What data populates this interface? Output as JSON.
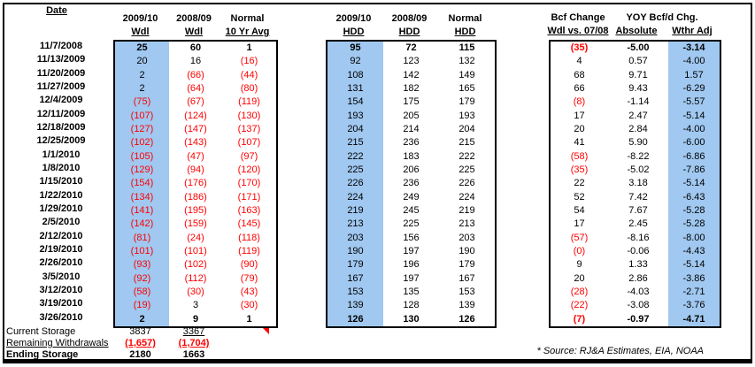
{
  "headers": {
    "date": "Date",
    "left": [
      [
        "2009/10",
        "Wdl"
      ],
      [
        "2008/09",
        "Wdl"
      ],
      [
        "Normal",
        "10 Yr Avg"
      ]
    ],
    "middle": [
      [
        "2009/10",
        "HDD"
      ],
      [
        "2008/09",
        "HDD"
      ],
      [
        "Normal",
        "HDD"
      ]
    ],
    "right_group1_line1": "Bcf Change",
    "right_group1_line2": "Wdl vs. 07/08",
    "right_group2_line1": "YOY Bcf/d Chg.",
    "right_group2_col1": "Absolute",
    "right_group2_col2": "Wthr Adj"
  },
  "row_key_order": [
    "date",
    "wdl_2009_10",
    "wdl_2008_09",
    "wdl_normal_10yr",
    "hdd_2009_10",
    "hdd_2008_09",
    "hdd_normal",
    "bcf_change_wdl_vs_0708",
    "yoy_bcfd_absolute",
    "yoy_bcfd_wthr_adj"
  ],
  "rows": [
    [
      "11/7/2008",
      "25",
      "60",
      "1",
      "95",
      "72",
      "115",
      "(35)",
      "-5.00",
      "-3.14"
    ],
    [
      "11/13/2009",
      "20",
      "16",
      "(16)",
      "92",
      "123",
      "132",
      "4",
      "0.57",
      "-4.00"
    ],
    [
      "11/20/2009",
      "2",
      "(66)",
      "(44)",
      "108",
      "142",
      "149",
      "68",
      "9.71",
      "1.57"
    ],
    [
      "11/27/2009",
      "2",
      "(64)",
      "(80)",
      "131",
      "182",
      "165",
      "66",
      "9.43",
      "-6.29"
    ],
    [
      "12/4/2009",
      "(75)",
      "(67)",
      "(119)",
      "154",
      "175",
      "179",
      "(8)",
      "-1.14",
      "-5.57"
    ],
    [
      "12/11/2009",
      "(107)",
      "(124)",
      "(130)",
      "193",
      "205",
      "193",
      "17",
      "2.47",
      "-5.14"
    ],
    [
      "12/18/2009",
      "(127)",
      "(147)",
      "(137)",
      "204",
      "214",
      "204",
      "20",
      "2.84",
      "-4.00"
    ],
    [
      "12/25/2009",
      "(102)",
      "(143)",
      "(107)",
      "215",
      "236",
      "215",
      "41",
      "5.90",
      "-6.00"
    ],
    [
      "1/1/2010",
      "(105)",
      "(47)",
      "(97)",
      "222",
      "183",
      "222",
      "(58)",
      "-8.22",
      "-6.86"
    ],
    [
      "1/8/2010",
      "(129)",
      "(94)",
      "(120)",
      "225",
      "206",
      "225",
      "(35)",
      "-5.02",
      "-7.86"
    ],
    [
      "1/15/2010",
      "(154)",
      "(176)",
      "(170)",
      "226",
      "236",
      "226",
      "22",
      "3.18",
      "-5.14"
    ],
    [
      "1/22/2010",
      "(134)",
      "(186)",
      "(171)",
      "224",
      "249",
      "224",
      "52",
      "7.42",
      "-6.43"
    ],
    [
      "1/29/2010",
      "(141)",
      "(195)",
      "(163)",
      "219",
      "245",
      "219",
      "54",
      "7.67",
      "-5.28"
    ],
    [
      "2/5/2010",
      "(142)",
      "(159)",
      "(145)",
      "213",
      "225",
      "213",
      "17",
      "2.45",
      "-5.28"
    ],
    [
      "2/12/2010",
      "(81)",
      "(24)",
      "(118)",
      "203",
      "156",
      "203",
      "(57)",
      "-8.16",
      "-8.00"
    ],
    [
      "2/19/2010",
      "(101)",
      "(101)",
      "(119)",
      "190",
      "197",
      "190",
      "(0)",
      "-0.06",
      "-4.43"
    ],
    [
      "2/26/2010",
      "(93)",
      "(102)",
      "(90)",
      "179",
      "196",
      "179",
      "9",
      "1.33",
      "-5.14"
    ],
    [
      "3/5/2010",
      "(92)",
      "(112)",
      "(79)",
      "167",
      "197",
      "167",
      "20",
      "2.86",
      "-3.86"
    ],
    [
      "3/12/2010",
      "(58)",
      "(30)",
      "(43)",
      "153",
      "135",
      "153",
      "(28)",
      "-4.03",
      "-2.71"
    ],
    [
      "3/19/2010",
      "(19)",
      "3",
      "(30)",
      "139",
      "128",
      "139",
      "(22)",
      "-3.08",
      "-3.76"
    ],
    [
      "3/26/2010",
      "2",
      "9",
      "1",
      "126",
      "130",
      "126",
      "(7)",
      "-0.97",
      "-4.71"
    ]
  ],
  "footer": {
    "current_storage": {
      "label": "Current Storage",
      "v_2009_10": "3837",
      "v_2008_09": "3367"
    },
    "remaining_withdrawals": {
      "label": "Remaining Withdrawals",
      "v_2009_10": "(1,657)",
      "v_2008_09": "(1,704)"
    },
    "ending_storage": {
      "label": "Ending Storage",
      "v_2009_10": "2180",
      "v_2008_09": "1663"
    }
  },
  "source_note": "* Source: RJ&A Estimates, EIA, NOAA",
  "colors": {
    "highlight_blue": "#A0C8F0",
    "negative_red": "#FF0000"
  }
}
